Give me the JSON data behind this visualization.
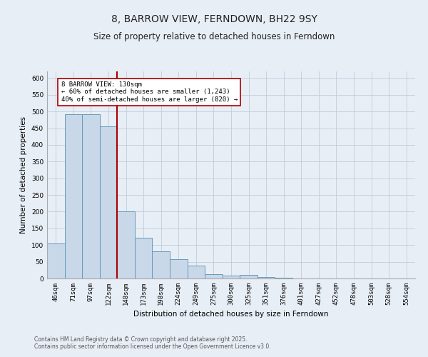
{
  "title": "8, BARROW VIEW, FERNDOWN, BH22 9SY",
  "subtitle": "Size of property relative to detached houses in Ferndown",
  "xlabel": "Distribution of detached houses by size in Ferndown",
  "ylabel": "Number of detached properties",
  "categories": [
    "46sqm",
    "71sqm",
    "97sqm",
    "122sqm",
    "148sqm",
    "173sqm",
    "198sqm",
    "224sqm",
    "249sqm",
    "275sqm",
    "300sqm",
    "325sqm",
    "351sqm",
    "376sqm",
    "401sqm",
    "427sqm",
    "452sqm",
    "478sqm",
    "503sqm",
    "528sqm",
    "554sqm"
  ],
  "values": [
    105,
    492,
    491,
    456,
    201,
    121,
    82,
    57,
    39,
    13,
    9,
    10,
    5,
    2,
    1,
    1,
    0,
    0,
    0,
    0,
    0
  ],
  "bar_color": "#c8d8e8",
  "bar_edge_color": "#6699bb",
  "vline_x": 3.5,
  "vline_color": "#aa0000",
  "annotation_text": "8 BARROW VIEW: 130sqm\n← 60% of detached houses are smaller (1,243)\n40% of semi-detached houses are larger (820) →",
  "annotation_box_color": "#ffffff",
  "annotation_box_edge_color": "#aa0000",
  "grid_color": "#c0ccdd",
  "background_color": "#e8eef5",
  "ylim": [
    0,
    620
  ],
  "yticks": [
    0,
    50,
    100,
    150,
    200,
    250,
    300,
    350,
    400,
    450,
    500,
    550,
    600
  ],
  "footer": "Contains HM Land Registry data © Crown copyright and database right 2025.\nContains public sector information licensed under the Open Government Licence v3.0.",
  "title_fontsize": 10,
  "subtitle_fontsize": 8.5,
  "axis_label_fontsize": 7.5,
  "tick_fontsize": 6.5,
  "footer_fontsize": 5.5,
  "annotation_fontsize": 6.5
}
